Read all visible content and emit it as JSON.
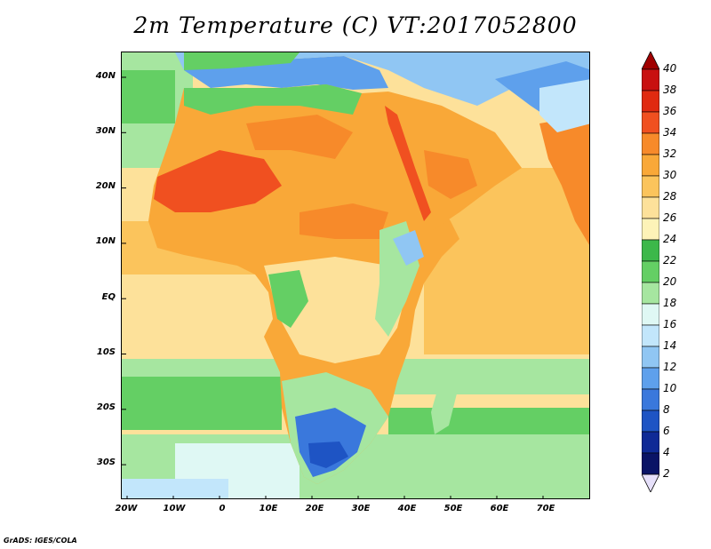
{
  "title": "2m Temperature (C) VT:2017052800",
  "credit": "GrADS: IGES/COLA",
  "lat_labels": [
    "40N",
    "30N",
    "20N",
    "10N",
    "EQ",
    "10S",
    "20S",
    "30S"
  ],
  "lon_labels": [
    "20W",
    "10W",
    "0",
    "10E",
    "20E",
    "30E",
    "40E",
    "50E",
    "60E",
    "70E"
  ],
  "colorbar": {
    "labels": [
      "40",
      "38",
      "36",
      "34",
      "32",
      "30",
      "28",
      "26",
      "24",
      "22",
      "20",
      "18",
      "16",
      "14",
      "12",
      "10",
      "8",
      "6",
      "4",
      "2"
    ],
    "colors": [
      "#a00000",
      "#c81010",
      "#e02a10",
      "#f05020",
      "#f78a2a",
      "#f9a838",
      "#fbc45c",
      "#fde19a",
      "#fdf3b8",
      "#3cb84a",
      "#64cf64",
      "#a6e6a0",
      "#dff8f4",
      "#c2e6fb",
      "#90c6f3",
      "#5ea0ec",
      "#3a78dc",
      "#1e54c4",
      "#0f2a96",
      "#0a1466"
    ],
    "top_arrow_color": "#a00000",
    "bottom_arrow_color": "#e6e0fa"
  },
  "colors": {
    "ocean_warm": "#fbc45c",
    "ocean_mild": "#fde19a",
    "ocean_cool": "#64cf64",
    "ocean_cold": "#a6e6a0",
    "med_sea": "#5ea0ec",
    "land_base": "#f9a838",
    "sahara_hot": "#f05020",
    "highland": "#90c6f3",
    "boundary": "#000000"
  }
}
